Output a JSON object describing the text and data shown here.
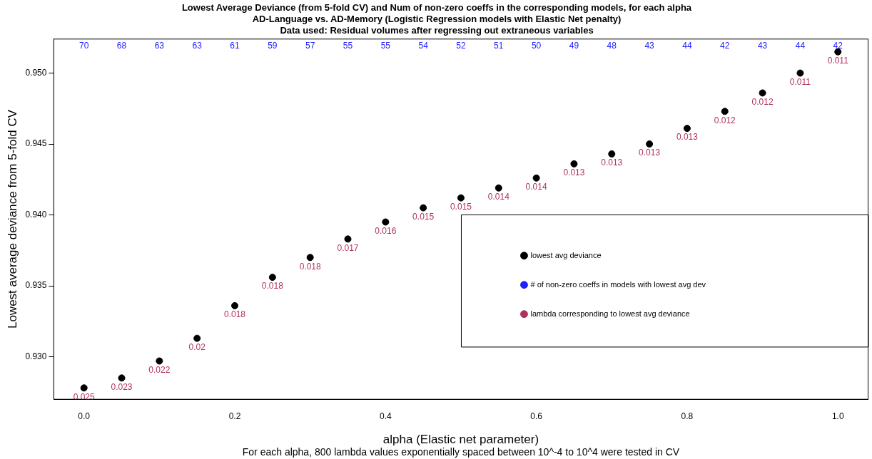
{
  "chart_data": {
    "type": "scatter",
    "title": "Lowest Average Deviance (from 5-fold CV) and Num of non-zero coeffs in the corresponding models, for each alpha\nAD-Language vs. AD-Memory (Logistic Regression models with Elastic Net penalty)\nData used: Residual volumes after regressing out extraneous variables",
    "xlabel": "alpha (Elastic net parameter)",
    "ylabel": "Lowest average deviance from 5-fold CV",
    "annotations": [
      "For each alpha, 800 lambda values exponentially spaced between 10^-4 to 10^4 were tested in CV"
    ],
    "x": [
      0,
      0.05,
      0.1,
      0.15,
      0.2,
      0.25,
      0.3,
      0.35,
      0.4,
      0.45,
      0.5,
      0.55,
      0.6,
      0.65,
      0.7,
      0.75,
      0.8,
      0.85,
      0.9,
      0.95,
      1
    ],
    "series": [
      {
        "name": "lowest avg deviance",
        "color": "#000000",
        "values": [
          0.9278,
          0.9285,
          0.9297,
          0.9313,
          0.9336,
          0.9356,
          0.937,
          0.9383,
          0.9395,
          0.9405,
          0.9412,
          0.9419,
          0.9426,
          0.9436,
          0.9443,
          0.945,
          0.9461,
          0.9473,
          0.9486,
          0.95,
          0.9515
        ]
      },
      {
        "name": "# of non-zero coeffs in models with lowest avg dev",
        "color": "#2020ff",
        "values": [
          null,
          null,
          null,
          null,
          null,
          null,
          null,
          null,
          null,
          null,
          null,
          null,
          null,
          null,
          null,
          null,
          null,
          null,
          null,
          null,
          null
        ],
        "value_labels": [
          "70",
          "68",
          "63",
          "63",
          "61",
          "59",
          "57",
          "55",
          "55",
          "54",
          "52",
          "51",
          "50",
          "49",
          "48",
          "43",
          "44",
          "42",
          "43",
          "44",
          "42"
        ]
      },
      {
        "name": "lambda corresponding to lowest avg deviance",
        "color": "#b03060",
        "values": [
          null,
          null,
          null,
          null,
          null,
          null,
          null,
          null,
          null,
          null,
          null,
          null,
          null,
          null,
          null,
          null,
          null,
          null,
          null,
          null,
          null
        ],
        "value_labels": [
          "0.025",
          "0.023",
          "0.022",
          "0.02",
          "0.018",
          "0.018",
          "0.018",
          "0.017",
          "0.016",
          "0.015",
          "0.015",
          "0.014",
          "0.014",
          "0.013",
          "0.013",
          "0.013",
          "0.013",
          "0.012",
          "0.012",
          "0.011",
          "0.011"
        ]
      }
    ],
    "xlim": [
      -0.04,
      1.04
    ],
    "xticks": [
      {
        "value": 0,
        "label": "0.0"
      },
      {
        "value": 0.2,
        "label": "0.2"
      },
      {
        "value": 0.4,
        "label": "0.4"
      },
      {
        "value": 0.6,
        "label": "0.6"
      },
      {
        "value": 0.8,
        "label": "0.8"
      },
      {
        "value": 1,
        "label": "1.0"
      }
    ],
    "ylim": [
      0.927,
      0.9524
    ],
    "yticks": [
      {
        "value": 0.93,
        "label": "0.930"
      },
      {
        "value": 0.935,
        "label": "0.935"
      },
      {
        "value": 0.94,
        "label": "0.940"
      },
      {
        "value": 0.945,
        "label": "0.945"
      },
      {
        "value": 0.95,
        "label": "0.950"
      }
    ],
    "grid": false,
    "legend": "bottom right",
    "marker": "circle"
  }
}
